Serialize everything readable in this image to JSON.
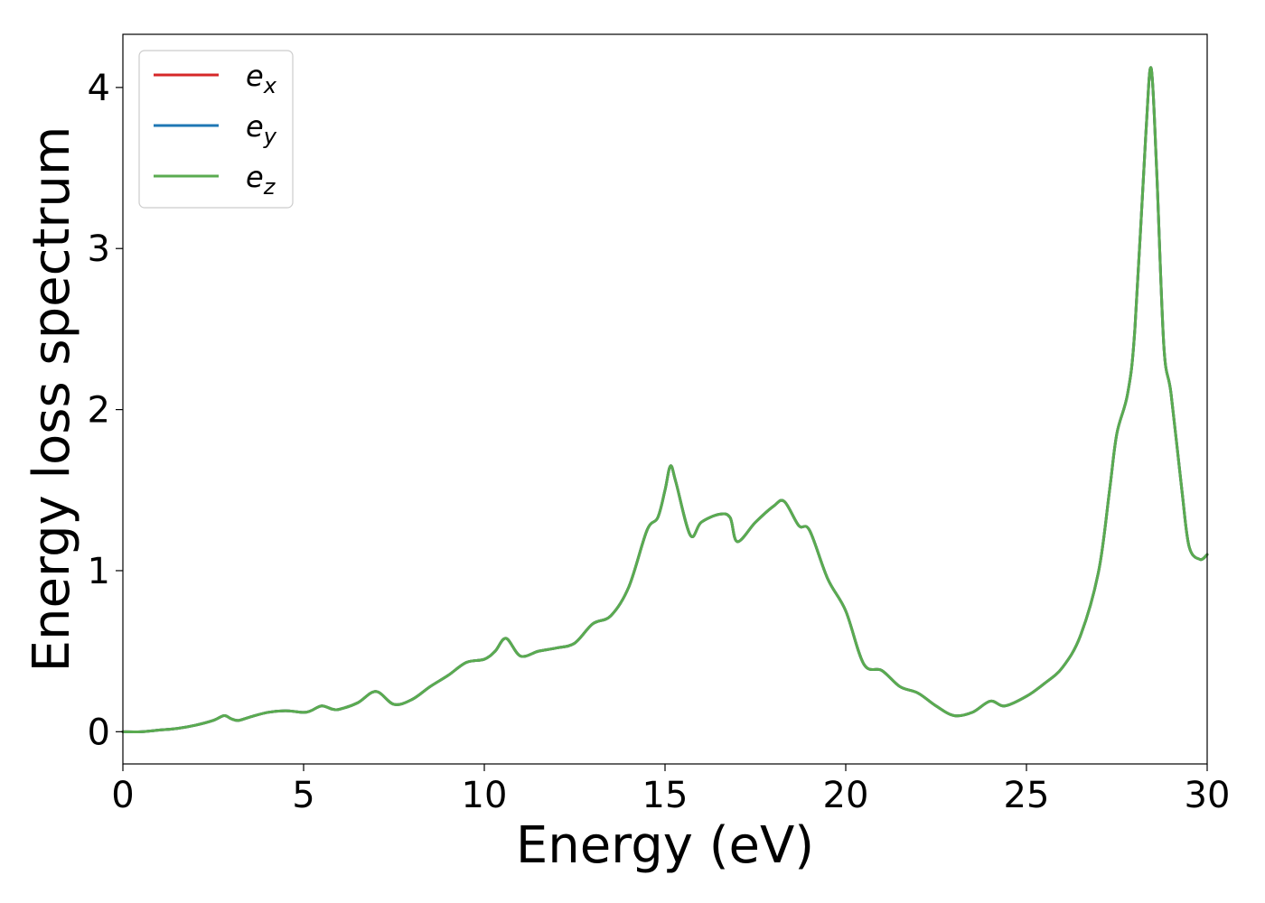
{
  "chart_data": {
    "type": "line",
    "title": "",
    "xlabel": "Energy (eV)",
    "ylabel": "Energy loss spectrum",
    "xlim": [
      0,
      30
    ],
    "ylim": [
      -0.2,
      4.33
    ],
    "xticks": [
      0,
      5,
      10,
      15,
      20,
      25,
      30
    ],
    "yticks": [
      0,
      1,
      2,
      3,
      4
    ],
    "grid": false,
    "legend_position": "top-left",
    "series": [
      {
        "name": "e",
        "subscript": "x",
        "color": "#d62728",
        "curve": "shared"
      },
      {
        "name": "e",
        "subscript": "y",
        "color": "#1f77b4",
        "curve": "shared"
      },
      {
        "name": "e",
        "subscript": "z",
        "color": "#5aab50",
        "curve": "shared"
      }
    ],
    "x": [
      0,
      0.5,
      1.0,
      1.5,
      2.0,
      2.5,
      2.8,
      3.0,
      3.2,
      3.5,
      4.0,
      4.5,
      5.0,
      5.2,
      5.5,
      5.8,
      6.0,
      6.5,
      7.0,
      7.5,
      8.0,
      8.5,
      9.0,
      9.5,
      10.0,
      10.3,
      10.6,
      11.0,
      11.5,
      12.0,
      12.5,
      13.0,
      13.5,
      14.0,
      14.5,
      14.8,
      15.0,
      15.15,
      15.3,
      15.7,
      16.0,
      16.5,
      16.8,
      17.0,
      17.5,
      18.0,
      18.3,
      18.7,
      19.0,
      19.5,
      20.0,
      20.5,
      21.0,
      21.5,
      22.0,
      22.5,
      23.0,
      23.5,
      24.0,
      24.4,
      25.0,
      25.5,
      26.0,
      26.5,
      27.0,
      27.3,
      27.5,
      27.8,
      28.0,
      28.3,
      28.45,
      28.6,
      28.8,
      29.0,
      29.3,
      29.5,
      29.8,
      30.0
    ],
    "y": [
      0.0,
      0.0,
      0.01,
      0.02,
      0.04,
      0.07,
      0.1,
      0.08,
      0.07,
      0.09,
      0.12,
      0.13,
      0.12,
      0.13,
      0.16,
      0.14,
      0.14,
      0.18,
      0.25,
      0.17,
      0.2,
      0.28,
      0.35,
      0.43,
      0.45,
      0.5,
      0.58,
      0.47,
      0.5,
      0.52,
      0.55,
      0.67,
      0.72,
      0.9,
      1.25,
      1.33,
      1.5,
      1.65,
      1.55,
      1.22,
      1.3,
      1.35,
      1.33,
      1.18,
      1.3,
      1.4,
      1.43,
      1.28,
      1.25,
      0.95,
      0.75,
      0.42,
      0.38,
      0.28,
      0.24,
      0.16,
      0.1,
      0.12,
      0.19,
      0.16,
      0.22,
      0.3,
      0.4,
      0.6,
      1.0,
      1.5,
      1.85,
      2.1,
      2.5,
      3.7,
      4.12,
      3.5,
      2.4,
      2.1,
      1.5,
      1.15,
      1.07,
      1.1
    ]
  }
}
